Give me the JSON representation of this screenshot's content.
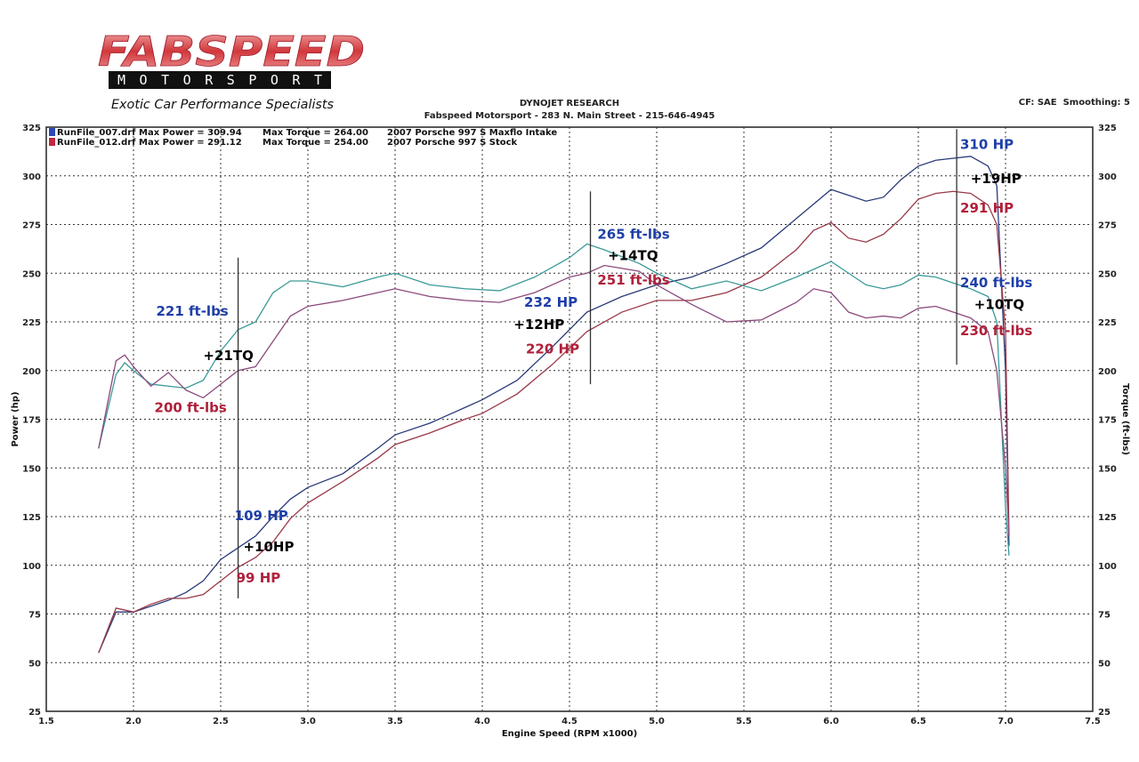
{
  "logo": {
    "brand": "FABSPEED",
    "sub": "MOTORSPORT",
    "tagline": "Exotic Car Performance Specialists"
  },
  "header": {
    "title": "DYNOJET RESEARCH",
    "subtitle": "Fabspeed Motorsport - 283 N. Main Street - 215-646-4945",
    "settings": "CF: SAE  Smoothing: 5"
  },
  "chart_data": {
    "type": "line",
    "title": "DYNOJET RESEARCH",
    "xlabel": "Engine Speed (RPM x1000)",
    "ylabel": "Power (hp)",
    "y2label": "Torque (ft-lbs)",
    "xlim": [
      1.5,
      7.5
    ],
    "ylim": [
      25,
      325
    ],
    "y2lim": [
      25,
      325
    ],
    "xticks": [
      "1.5",
      "2.0",
      "2.5",
      "3.0",
      "3.5",
      "4.0",
      "4.5",
      "5.0",
      "5.5",
      "6.0",
      "6.5",
      "7.0",
      "7.5"
    ],
    "yticks": [
      "25",
      "50",
      "75",
      "100",
      "125",
      "150",
      "175",
      "200",
      "225",
      "250",
      "275",
      "300",
      "325"
    ],
    "grid": true,
    "legend_placement": "top-left",
    "legend": [
      {
        "file": "RunFile_007.drf",
        "power": "Max Power = 309.94",
        "torque": "Max Torque = 264.00",
        "desc": "2007 Porsche 997 S Maxflo Intake",
        "color": "#2b47b8"
      },
      {
        "file": "RunFile_012.drf",
        "power": "Max Power = 291.12",
        "torque": "Max Torque = 254.00",
        "desc": "2007 Porsche 997 S Stock",
        "color": "#c0283e"
      }
    ],
    "series": [
      {
        "name": "RunFile_007.drf",
        "measure": "power",
        "color": "#2a3a78",
        "x": [
          1.8,
          1.9,
          2.0,
          2.1,
          2.2,
          2.3,
          2.4,
          2.5,
          2.6,
          2.7,
          2.8,
          2.9,
          3.0,
          3.2,
          3.4,
          3.5,
          3.7,
          3.9,
          4.0,
          4.2,
          4.4,
          4.6,
          4.8,
          5.0,
          5.2,
          5.4,
          5.6,
          5.8,
          6.0,
          6.1,
          6.2,
          6.3,
          6.4,
          6.5,
          6.6,
          6.7,
          6.8,
          6.9,
          6.95,
          7.0,
          7.02
        ],
        "y": [
          55,
          76,
          76,
          79,
          82,
          86,
          92,
          103,
          109,
          115,
          125,
          134,
          140,
          147,
          160,
          167,
          173,
          181,
          185,
          195,
          212,
          230,
          238,
          244,
          248,
          255,
          263,
          278,
          293,
          290,
          287,
          289,
          298,
          305,
          308,
          309,
          310,
          305,
          295,
          200,
          110
        ]
      },
      {
        "name": "RunFile_012.drf",
        "measure": "power",
        "color": "#9a3848",
        "x": [
          1.8,
          1.9,
          2.0,
          2.1,
          2.2,
          2.3,
          2.4,
          2.5,
          2.6,
          2.7,
          2.8,
          2.9,
          3.0,
          3.2,
          3.4,
          3.5,
          3.7,
          3.9,
          4.0,
          4.2,
          4.4,
          4.6,
          4.8,
          5.0,
          5.2,
          5.4,
          5.6,
          5.8,
          5.9,
          6.0,
          6.1,
          6.2,
          6.3,
          6.4,
          6.5,
          6.6,
          6.7,
          6.8,
          6.9,
          6.95,
          7.0,
          7.02
        ],
        "y": [
          55,
          78,
          76,
          80,
          83,
          83,
          85,
          92,
          99,
          104,
          112,
          124,
          132,
          143,
          155,
          162,
          168,
          175,
          178,
          188,
          203,
          220,
          230,
          236,
          236,
          240,
          248,
          262,
          272,
          276,
          268,
          266,
          270,
          278,
          288,
          291,
          292,
          291,
          285,
          275,
          220,
          115
        ]
      },
      {
        "name": "RunFile_007.drf",
        "measure": "torque",
        "color": "#3b9a98",
        "x": [
          1.8,
          1.9,
          1.95,
          2.0,
          2.1,
          2.2,
          2.3,
          2.4,
          2.5,
          2.6,
          2.7,
          2.8,
          2.9,
          3.0,
          3.2,
          3.4,
          3.5,
          3.7,
          3.9,
          4.1,
          4.3,
          4.5,
          4.6,
          4.7,
          4.9,
          5.0,
          5.2,
          5.4,
          5.6,
          5.8,
          6.0,
          6.1,
          6.2,
          6.3,
          6.4,
          6.5,
          6.6,
          6.7,
          6.8,
          6.9,
          6.95,
          7.0,
          7.02
        ],
        "y": [
          160,
          198,
          204,
          200,
          193,
          192,
          191,
          195,
          210,
          221,
          225,
          240,
          246,
          246,
          243,
          248,
          250,
          244,
          242,
          241,
          248,
          258,
          265,
          262,
          255,
          250,
          242,
          246,
          241,
          248,
          256,
          250,
          244,
          242,
          244,
          249,
          248,
          245,
          242,
          238,
          225,
          130,
          105
        ]
      },
      {
        "name": "RunFile_012.drf",
        "measure": "torque",
        "color": "#8c4a7c",
        "x": [
          1.8,
          1.9,
          1.95,
          2.0,
          2.1,
          2.2,
          2.3,
          2.4,
          2.5,
          2.6,
          2.7,
          2.8,
          2.9,
          3.0,
          3.2,
          3.4,
          3.5,
          3.7,
          3.9,
          4.1,
          4.3,
          4.5,
          4.6,
          4.7,
          4.9,
          5.0,
          5.2,
          5.4,
          5.6,
          5.8,
          5.9,
          6.0,
          6.1,
          6.2,
          6.3,
          6.4,
          6.5,
          6.6,
          6.7,
          6.8,
          6.9,
          6.95,
          7.0,
          7.02
        ],
        "y": [
          160,
          205,
          208,
          202,
          192,
          199,
          190,
          186,
          193,
          200,
          202,
          215,
          228,
          233,
          236,
          240,
          242,
          238,
          236,
          235,
          240,
          248,
          250,
          254,
          251,
          244,
          234,
          225,
          226,
          235,
          242,
          240,
          230,
          227,
          228,
          227,
          232,
          233,
          230,
          227,
          220,
          200,
          150,
          115
        ]
      }
    ],
    "markers": [
      {
        "x": 2.6,
        "y": [
          83,
          258
        ]
      },
      {
        "x": 4.62,
        "y": [
          193,
          292
        ]
      },
      {
        "x": 6.72,
        "y": [
          203,
          324
        ]
      }
    ],
    "annotations": [
      {
        "text": "221 ft-lbs",
        "x": 2.13,
        "y": 230.5,
        "color": "#1f3fa8"
      },
      {
        "text": "+21TQ",
        "x": 2.4,
        "y": 207.6,
        "color": "#000000"
      },
      {
        "text": "200 ft-lbs",
        "x": 2.12,
        "y": 181,
        "color": "#b0203a"
      },
      {
        "text": "109 HP",
        "x": 2.58,
        "y": 125.5,
        "color": "#1f3fa8"
      },
      {
        "text": "+10HP",
        "x": 2.63,
        "y": 109.5,
        "color": "#000000"
      },
      {
        "text": "99 HP",
        "x": 2.59,
        "y": 93.5,
        "color": "#b0203a"
      },
      {
        "text": "265 ft-lbs",
        "x": 4.66,
        "y": 270,
        "color": "#1f3fa8"
      },
      {
        "text": "+14TQ",
        "x": 4.72,
        "y": 259,
        "color": "#000000"
      },
      {
        "text": "251 ft-lbs",
        "x": 4.66,
        "y": 246.5,
        "color": "#b0203a"
      },
      {
        "text": "232 HP",
        "x": 4.24,
        "y": 235,
        "color": "#1f3fa8"
      },
      {
        "text": "+12HP",
        "x": 4.18,
        "y": 223.6,
        "color": "#000000"
      },
      {
        "text": "220 HP",
        "x": 4.25,
        "y": 211,
        "color": "#b0203a"
      },
      {
        "text": "310 HP",
        "x": 6.74,
        "y": 316,
        "color": "#1f3fa8"
      },
      {
        "text": "+19HP",
        "x": 6.8,
        "y": 298.5,
        "color": "#000000"
      },
      {
        "text": "291 HP",
        "x": 6.74,
        "y": 283.4,
        "color": "#b0203a"
      },
      {
        "text": "240 ft-lbs",
        "x": 6.74,
        "y": 245,
        "color": "#1f3fa8"
      },
      {
        "text": "+10TQ",
        "x": 6.82,
        "y": 234,
        "color": "#000000"
      },
      {
        "text": "230 ft-lbs",
        "x": 6.74,
        "y": 220.4,
        "color": "#b0203a"
      }
    ]
  }
}
